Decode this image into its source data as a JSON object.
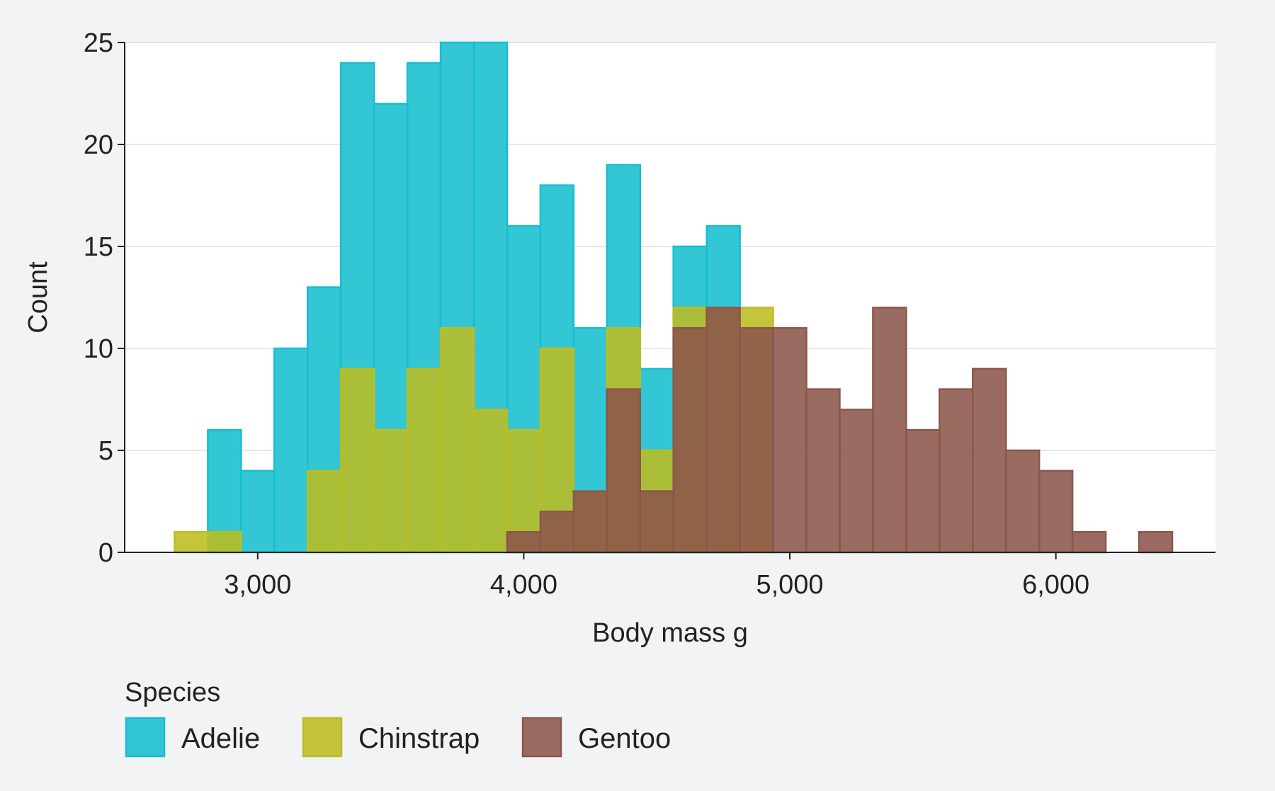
{
  "chart_data": {
    "type": "histogram",
    "xlabel": "Body mass g",
    "ylabel": "Count",
    "xlim": [
      2500,
      6600
    ],
    "ylim": [
      0,
      25
    ],
    "bin_width": 125,
    "x_ticks": [
      3000,
      4000,
      5000,
      6000
    ],
    "x_tick_labels": [
      "3,000",
      "4,000",
      "5,000",
      "6,000"
    ],
    "y_ticks": [
      0,
      5,
      10,
      15,
      20,
      25
    ],
    "y_tick_labels": [
      "0",
      "5",
      "10",
      "15",
      "20",
      "25"
    ],
    "grid": "horizontal",
    "legend": {
      "title": "Species",
      "position": "bottom-left"
    },
    "series": [
      {
        "name": "Adelie",
        "color": "#17becf",
        "bins": [
          {
            "x0": 2812.5,
            "count": 6
          },
          {
            "x0": 2937.5,
            "count": 4
          },
          {
            "x0": 3062.5,
            "count": 10
          },
          {
            "x0": 3187.5,
            "count": 13
          },
          {
            "x0": 3312.5,
            "count": 24
          },
          {
            "x0": 3437.5,
            "count": 22
          },
          {
            "x0": 3562.5,
            "count": 24
          },
          {
            "x0": 3687.5,
            "count": 25
          },
          {
            "x0": 3812.5,
            "count": 25
          },
          {
            "x0": 3937.5,
            "count": 16
          },
          {
            "x0": 4062.5,
            "count": 18
          },
          {
            "x0": 4187.5,
            "count": 11
          },
          {
            "x0": 4312.5,
            "count": 19
          },
          {
            "x0": 4437.5,
            "count": 9
          },
          {
            "x0": 4562.5,
            "count": 15
          },
          {
            "x0": 4687.5,
            "count": 16
          }
        ]
      },
      {
        "name": "Chinstrap",
        "color": "#bcbd22",
        "bins": [
          {
            "x0": 2687.5,
            "count": 1
          },
          {
            "x0": 2812.5,
            "count": 1
          },
          {
            "x0": 3187.5,
            "count": 4
          },
          {
            "x0": 3312.5,
            "count": 9
          },
          {
            "x0": 3437.5,
            "count": 6
          },
          {
            "x0": 3562.5,
            "count": 9
          },
          {
            "x0": 3687.5,
            "count": 11
          },
          {
            "x0": 3812.5,
            "count": 7
          },
          {
            "x0": 3937.5,
            "count": 6
          },
          {
            "x0": 4062.5,
            "count": 10
          },
          {
            "x0": 4187.5,
            "count": 3
          },
          {
            "x0": 4312.5,
            "count": 11
          },
          {
            "x0": 4437.5,
            "count": 5
          },
          {
            "x0": 4562.5,
            "count": 12
          },
          {
            "x0": 4687.5,
            "count": 12
          },
          {
            "x0": 4812.5,
            "count": 12
          }
        ]
      },
      {
        "name": "Gentoo",
        "color": "#8c564b",
        "bins": [
          {
            "x0": 3937.5,
            "count": 1
          },
          {
            "x0": 4062.5,
            "count": 2
          },
          {
            "x0": 4187.5,
            "count": 3
          },
          {
            "x0": 4312.5,
            "count": 8
          },
          {
            "x0": 4437.5,
            "count": 3
          },
          {
            "x0": 4562.5,
            "count": 11
          },
          {
            "x0": 4687.5,
            "count": 12
          },
          {
            "x0": 4812.5,
            "count": 11
          },
          {
            "x0": 4937.5,
            "count": 11
          },
          {
            "x0": 5062.5,
            "count": 8
          },
          {
            "x0": 5187.5,
            "count": 7
          },
          {
            "x0": 5312.5,
            "count": 12
          },
          {
            "x0": 5437.5,
            "count": 6
          },
          {
            "x0": 5562.5,
            "count": 8
          },
          {
            "x0": 5687.5,
            "count": 9
          },
          {
            "x0": 5812.5,
            "count": 5
          },
          {
            "x0": 5937.5,
            "count": 4
          },
          {
            "x0": 6062.5,
            "count": 1
          },
          {
            "x0": 6187.5,
            "count": 0
          },
          {
            "x0": 6312.5,
            "count": 1
          }
        ]
      }
    ]
  }
}
